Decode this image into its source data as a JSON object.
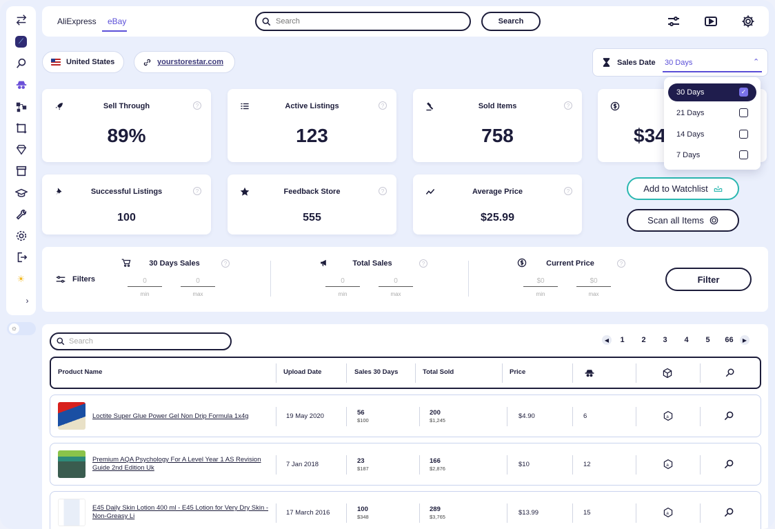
{
  "topbar": {
    "tabs": [
      {
        "label": "AliExpress"
      },
      {
        "label": "eBay"
      }
    ],
    "search_placeholder": "Search",
    "search_button": "Search",
    "icons": [
      "sliders-icon",
      "video-icon",
      "gear-icon"
    ]
  },
  "location": {
    "country": "United States",
    "store_url": "yourstorestar.com"
  },
  "sales_date": {
    "label": "Sales Date",
    "value": "30 Days",
    "options": [
      {
        "label": "30 Days",
        "checked": true
      },
      {
        "label": "21 Days",
        "checked": false
      },
      {
        "label": "14 Days",
        "checked": false
      },
      {
        "label": "7 Days",
        "checked": false
      }
    ]
  },
  "stats": {
    "sell_through": {
      "title": "Sell Through",
      "value": "89%"
    },
    "active_listings": {
      "title": "Active Listings",
      "value": "123"
    },
    "sold_items": {
      "title": "Sold Items",
      "value": "758"
    },
    "revenue": {
      "value": "$34"
    },
    "successful_listings": {
      "title": "Successful Listings",
      "value": "100"
    },
    "feedback_store": {
      "title": "Feedback Store",
      "value": "555"
    },
    "average_price": {
      "title": "Average Price",
      "value": "$25.99"
    }
  },
  "actions": {
    "watchlist": "Add to Watchlist",
    "scan": "Scan all Items"
  },
  "filters": {
    "label": "Filters",
    "groups": [
      {
        "title": "30 Days Sales",
        "min": "0",
        "max": "0"
      },
      {
        "title": "Total Sales",
        "min": "0",
        "max": "0"
      },
      {
        "title": "Current Price",
        "min": "$0",
        "max": "$0"
      }
    ],
    "min_label": "min",
    "max_label": "max",
    "button": "Filter"
  },
  "table": {
    "search_placeholder": "Search",
    "pages": [
      "1",
      "2",
      "3",
      "4",
      "5",
      "66"
    ],
    "columns": [
      "Product Name",
      "Upload Date",
      "Sales 30 Days",
      "Total Sold",
      "Price"
    ],
    "rows": [
      {
        "name": "Loctite Super Glue Power Gel Non Drip Formula 1x4g",
        "date": "19 May 2020",
        "sales30": "56",
        "sales30_rev": "$100",
        "total": "200",
        "total_rev": "$1,245",
        "price": "$4.90",
        "sellers": "6"
      },
      {
        "name": "Premium AQA Psychology For A Level Year 1 AS Revision Guide 2nd Edition Uk",
        "date": "7 Jan 2018",
        "sales30": "23",
        "sales30_rev": "$187",
        "total": "166",
        "total_rev": "$2,876",
        "price": "$10",
        "sellers": "12"
      },
      {
        "name": "E45 Daily Skin Lotion 400 ml - E45 Lotion for Very Dry Skin - Non-Greasy Li",
        "date": "17 March 2016",
        "sales30": "100",
        "sales30_rev": "$348",
        "total": "289",
        "total_rev": "$3,765",
        "price": "$13.99",
        "sellers": "15"
      }
    ]
  },
  "colors": {
    "accent": "#5b4fd8",
    "dark": "#1c1c3a",
    "teal": "#2ab7b0"
  }
}
